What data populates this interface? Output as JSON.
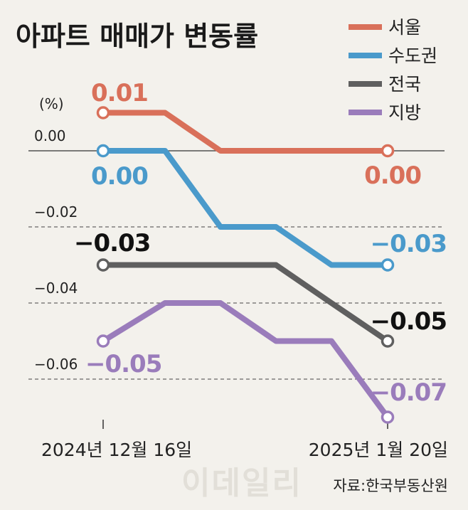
{
  "chart_data": {
    "type": "line",
    "title": "아파트 매매가 변동률",
    "unit_label": "(%)",
    "x": [
      "2024년 12월 16일",
      "",
      "",
      "",
      "",
      "2025년 1월 20일"
    ],
    "x_tick_labels": [
      "2024년 12월 16일",
      "2025년 1월 20일"
    ],
    "ylim": [
      -0.07,
      0.01
    ],
    "y_ticks": [
      0.0,
      -0.02,
      -0.04,
      -0.06
    ],
    "y_tick_labels": [
      "0.00",
      "−0.02",
      "−0.04",
      "−0.06"
    ],
    "grid": "dashed horizontal at -0.02, -0.04, -0.06; solid baseline at 0.00",
    "legend_position": "top-right",
    "series": [
      {
        "name": "서울",
        "color": "#d9705a",
        "values": [
          0.01,
          0.01,
          0.0,
          0.0,
          0.0,
          0.0
        ],
        "start_label": "0.01",
        "end_label": "0.00"
      },
      {
        "name": "수도권",
        "color": "#4a9acb",
        "values": [
          0.0,
          0.0,
          -0.02,
          -0.02,
          -0.03,
          -0.03
        ],
        "start_label": "0.00",
        "end_label": "−0.03"
      },
      {
        "name": "전국",
        "color": "#5f5f5f",
        "values": [
          -0.03,
          -0.03,
          -0.03,
          -0.03,
          -0.04,
          -0.05
        ],
        "start_label": "−0.03",
        "end_label": "−0.05"
      },
      {
        "name": "지방",
        "color": "#9a7cbb",
        "values": [
          -0.05,
          -0.04,
          -0.04,
          -0.05,
          -0.05,
          -0.07
        ],
        "start_label": "−0.05",
        "end_label": "−0.07"
      }
    ]
  },
  "source": "자료:한국부동산원",
  "watermark": "이데일리"
}
